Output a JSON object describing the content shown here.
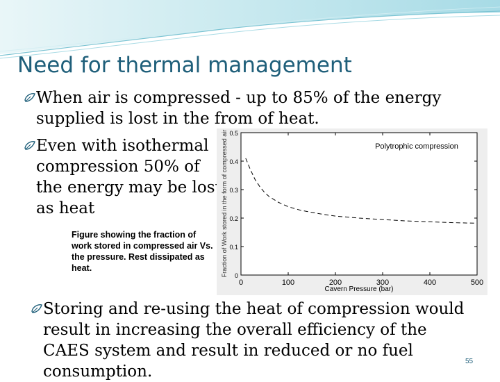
{
  "slide": {
    "title": "Need for thermal management",
    "bullets": [
      "When air is compressed - up to 85% of the energy supplied is lost in the from of heat.",
      "Even with isothermal compression 50% of the energy may be lost as heat",
      "Storing and re-using the heat of compression would result in increasing the overall efficiency of the CAES system and result in reduced or no fuel consumption."
    ],
    "caption": "Figure showing the fraction of work stored in compressed air Vs. the pressure. Rest dissipated as heat.",
    "slide_number": "55",
    "accent_color": "#1f5f7a",
    "bullet_icon": "leaf-bullet-icon"
  },
  "chart_data": {
    "type": "line",
    "annotation": "Polytrophic compression",
    "xlabel": "Cavern Pressure (bar)",
    "ylabel": "Fraction of Work stored in the form of compressed air",
    "xlim": [
      0,
      500
    ],
    "ylim": [
      0,
      0.5
    ],
    "xticks": [
      0,
      100,
      200,
      300,
      400,
      500
    ],
    "yticks": [
      0,
      0.1,
      0.2,
      0.3,
      0.4,
      0.5
    ],
    "line_style": "dashed",
    "grid": false,
    "series": [
      {
        "x": [
          10,
          20,
          30,
          40,
          50,
          60,
          80,
          100,
          125,
          150,
          175,
          200,
          250,
          300,
          350,
          400,
          450,
          500
        ],
        "y": [
          0.41,
          0.37,
          0.335,
          0.31,
          0.29,
          0.275,
          0.255,
          0.24,
          0.228,
          0.22,
          0.213,
          0.207,
          0.2,
          0.195,
          0.19,
          0.187,
          0.184,
          0.182
        ]
      }
    ]
  }
}
